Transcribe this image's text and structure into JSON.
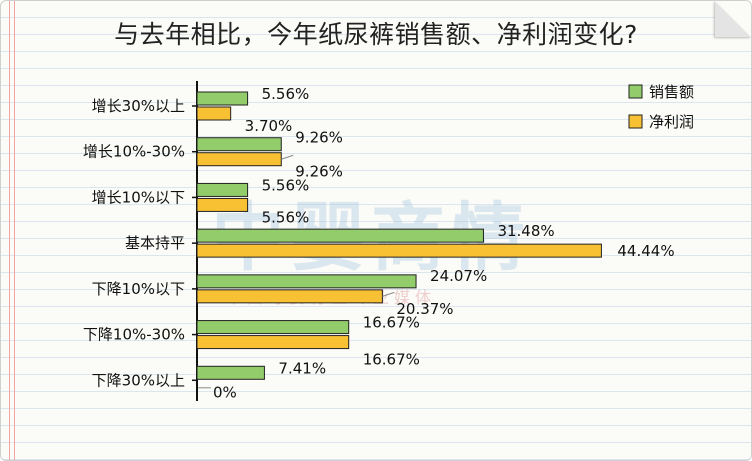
{
  "title": "与去年相比，今年纸尿裤销售额、净利润变化?",
  "watermark": {
    "main": "中婴商情",
    "sub": "中国母婴行业专业媒体"
  },
  "colors": {
    "sales": "#93cc6b",
    "profit": "#f7c133",
    "bar_stroke": "#222222",
    "leader": "#8a8a8a"
  },
  "chart_data": {
    "type": "bar",
    "orientation": "horizontal",
    "categories": [
      "增长30%以上",
      "增长10%-30%",
      "增长10%以下",
      "基本持平",
      "下降10%以下",
      "下降10%-30%",
      "下降30%以上"
    ],
    "series": [
      {
        "name": "销售额",
        "values": [
          5.56,
          9.26,
          5.56,
          31.48,
          24.07,
          16.67,
          7.41
        ],
        "labels": [
          "5.56%",
          "9.26%",
          "5.56%",
          "31.48%",
          "24.07%",
          "16.67%",
          "7.41%"
        ]
      },
      {
        "name": "净利润",
        "values": [
          3.7,
          9.26,
          5.56,
          44.44,
          20.37,
          16.67,
          0
        ],
        "labels": [
          "3.70%",
          "9.26%",
          "5.56%",
          "44.44%",
          "20.37%",
          "16.67%",
          "0%"
        ]
      }
    ],
    "xlim": [
      0,
      50
    ],
    "grid": false,
    "legend_position": "top-right"
  }
}
